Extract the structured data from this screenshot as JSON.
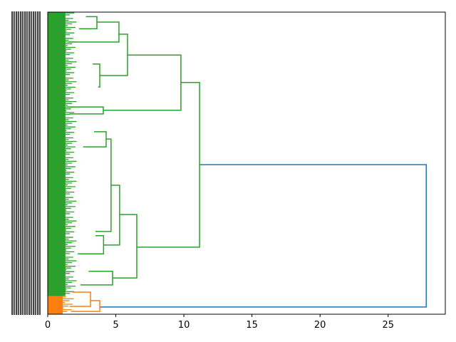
{
  "chart_data": {
    "type": "dendrogram",
    "orientation": "horizontal",
    "title": "",
    "xlabel": "",
    "ylabel": "",
    "xlim": [
      0,
      29.2
    ],
    "ylim_leaf_units": [
      0,
      1000
    ],
    "xticks": [
      0,
      5,
      10,
      15,
      20,
      25
    ],
    "xtick_labels": [
      "0",
      "5",
      "10",
      "15",
      "20",
      "25"
    ],
    "leaf_labels_legible": false,
    "colors": {
      "cluster1": "#2ca02c",
      "cluster2": "#ff7f0e",
      "above_threshold": "#1f77b4"
    },
    "leaf_clusters": [
      {
        "color": "#2ca02c",
        "range": [
          60,
          1000
        ],
        "max_leaf_height": 1.3
      },
      {
        "color": "#ff7f0e",
        "range": [
          0,
          60
        ],
        "max_leaf_height": 1.1
      }
    ],
    "links": [
      {
        "h": 27.8,
        "top": [
          495,
          11.15
        ],
        "bottom": [
          24,
          3.82
        ],
        "color": "#1f77b4"
      },
      {
        "h": 11.15,
        "top": [
          767,
          9.78
        ],
        "bottom": [
          222,
          6.54
        ],
        "color": "#2ca02c"
      },
      {
        "h": 9.78,
        "top": [
          858,
          5.86
        ],
        "bottom": [
          675,
          4.08
        ],
        "color": "#2ca02c"
      },
      {
        "h": 5.86,
        "top": [
          927,
          5.23
        ],
        "bottom": [
          790,
          3.82
        ],
        "color": "#2ca02c"
      },
      {
        "h": 5.23,
        "top": [
          967,
          3.61
        ],
        "bottom": [
          901,
          1.5
        ],
        "color": "#2ca02c"
      },
      {
        "h": 3.61,
        "top": [
          985,
          2.8
        ],
        "bottom": [
          945,
          2.3
        ],
        "color": "#2ca02c"
      },
      {
        "h": 3.82,
        "top": [
          828,
          3.3
        ],
        "bottom": [
          752,
          3.7
        ],
        "color": "#2ca02c"
      },
      {
        "h": 4.08,
        "top": [
          686,
          1.4
        ],
        "bottom": [
          663,
          1.6
        ],
        "color": "#2ca02c"
      },
      {
        "h": 6.54,
        "top": [
          330,
          5.28
        ],
        "bottom": [
          120,
          4.76
        ],
        "color": "#2ca02c"
      },
      {
        "h": 5.28,
        "top": [
          427,
          4.65
        ],
        "bottom": [
          229,
          4.1
        ],
        "color": "#2ca02c"
      },
      {
        "h": 4.65,
        "top": [
          580,
          4.29
        ],
        "bottom": [
          274,
          3.5
        ],
        "color": "#2ca02c"
      },
      {
        "h": 4.29,
        "top": [
          604,
          3.4
        ],
        "bottom": [
          554,
          2.6
        ],
        "color": "#2ca02c"
      },
      {
        "h": 4.1,
        "top": [
          260,
          3.5
        ],
        "bottom": [
          200,
          2.2
        ],
        "color": "#2ca02c"
      },
      {
        "h": 4.76,
        "top": [
          142,
          3.0
        ],
        "bottom": [
          97,
          2.4
        ],
        "color": "#2ca02c"
      },
      {
        "h": 3.82,
        "top": [
          45,
          3.14
        ],
        "bottom": [
          9,
          1.7
        ],
        "color": "#ff7f0e"
      },
      {
        "h": 3.14,
        "top": [
          73,
          1.8
        ],
        "bottom": [
          26,
          1.6
        ],
        "color": "#ff7f0e"
      }
    ]
  }
}
